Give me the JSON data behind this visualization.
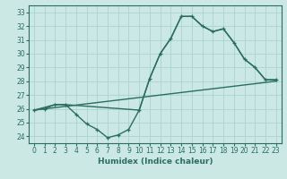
{
  "xlabel": "Humidex (Indice chaleur)",
  "bg_color": "#cce8e4",
  "grid_color": "#aad4ce",
  "line_color": "#2a6e60",
  "xlim": [
    -0.5,
    23.5
  ],
  "ylim": [
    23.5,
    33.5
  ],
  "xticks": [
    0,
    1,
    2,
    3,
    4,
    5,
    6,
    7,
    8,
    9,
    10,
    11,
    12,
    13,
    14,
    15,
    16,
    17,
    18,
    19,
    20,
    21,
    22,
    23
  ],
  "yticks": [
    24,
    25,
    26,
    27,
    28,
    29,
    30,
    31,
    32,
    33
  ],
  "line_marked": {
    "x": [
      0,
      1,
      2,
      3,
      4,
      5,
      6,
      7,
      8,
      9,
      10,
      11,
      12,
      13,
      14,
      15,
      16,
      17,
      18,
      19,
      20,
      21,
      22,
      23
    ],
    "y": [
      25.9,
      26.0,
      26.3,
      26.3,
      25.6,
      24.9,
      24.5,
      23.9,
      24.1,
      24.5,
      25.9,
      28.2,
      30.0,
      31.1,
      32.7,
      32.7,
      32.0,
      31.6,
      31.8,
      30.8,
      29.6,
      29.0,
      28.1,
      28.1
    ]
  },
  "line_straight": {
    "x": [
      0,
      23
    ],
    "y": [
      25.9,
      28.0
    ]
  },
  "line_upper": {
    "x": [
      0,
      2,
      3,
      10,
      11,
      12,
      13,
      14,
      15,
      16,
      17,
      18,
      19,
      20,
      21,
      22,
      23
    ],
    "y": [
      25.9,
      26.3,
      26.3,
      25.9,
      28.2,
      30.0,
      31.1,
      32.7,
      32.7,
      32.0,
      31.6,
      31.8,
      30.8,
      29.6,
      29.0,
      28.1,
      28.1
    ]
  }
}
